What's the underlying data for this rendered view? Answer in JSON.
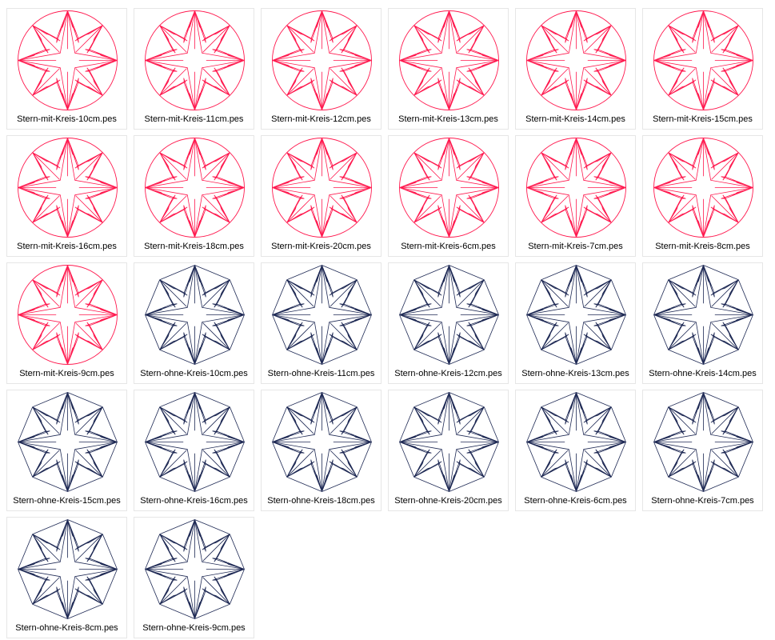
{
  "colors": {
    "mit_kreis": "#ff1a4f",
    "ohne_kreis": "#1f2a55"
  },
  "files": [
    {
      "name": "Stern-mit-Kreis-10cm.pes",
      "variant": "mit_kreis",
      "icon": "embroidery-star-circle-thumbnail"
    },
    {
      "name": "Stern-mit-Kreis-11cm.pes",
      "variant": "mit_kreis",
      "icon": "embroidery-star-circle-thumbnail"
    },
    {
      "name": "Stern-mit-Kreis-12cm.pes",
      "variant": "mit_kreis",
      "icon": "embroidery-star-circle-thumbnail"
    },
    {
      "name": "Stern-mit-Kreis-13cm.pes",
      "variant": "mit_kreis",
      "icon": "embroidery-star-circle-thumbnail"
    },
    {
      "name": "Stern-mit-Kreis-14cm.pes",
      "variant": "mit_kreis",
      "icon": "embroidery-star-circle-thumbnail"
    },
    {
      "name": "Stern-mit-Kreis-15cm.pes",
      "variant": "mit_kreis",
      "icon": "embroidery-star-circle-thumbnail"
    },
    {
      "name": "Stern-mit-Kreis-16cm.pes",
      "variant": "mit_kreis",
      "icon": "embroidery-star-circle-thumbnail"
    },
    {
      "name": "Stern-mit-Kreis-18cm.pes",
      "variant": "mit_kreis",
      "icon": "embroidery-star-circle-thumbnail"
    },
    {
      "name": "Stern-mit-Kreis-20cm.pes",
      "variant": "mit_kreis",
      "icon": "embroidery-star-circle-thumbnail"
    },
    {
      "name": "Stern-mit-Kreis-6cm.pes",
      "variant": "mit_kreis",
      "icon": "embroidery-star-circle-thumbnail"
    },
    {
      "name": "Stern-mit-Kreis-7cm.pes",
      "variant": "mit_kreis",
      "icon": "embroidery-star-circle-thumbnail"
    },
    {
      "name": "Stern-mit-Kreis-8cm.pes",
      "variant": "mit_kreis",
      "icon": "embroidery-star-circle-thumbnail"
    },
    {
      "name": "Stern-mit-Kreis-9cm.pes",
      "variant": "mit_kreis",
      "icon": "embroidery-star-circle-thumbnail"
    },
    {
      "name": "Stern-ohne-Kreis-10cm.pes",
      "variant": "ohne_kreis",
      "icon": "embroidery-star-thumbnail"
    },
    {
      "name": "Stern-ohne-Kreis-11cm.pes",
      "variant": "ohne_kreis",
      "icon": "embroidery-star-thumbnail"
    },
    {
      "name": "Stern-ohne-Kreis-12cm.pes",
      "variant": "ohne_kreis",
      "icon": "embroidery-star-thumbnail"
    },
    {
      "name": "Stern-ohne-Kreis-13cm.pes",
      "variant": "ohne_kreis",
      "icon": "embroidery-star-thumbnail"
    },
    {
      "name": "Stern-ohne-Kreis-14cm.pes",
      "variant": "ohne_kreis",
      "icon": "embroidery-star-thumbnail"
    },
    {
      "name": "Stern-ohne-Kreis-15cm.pes",
      "variant": "ohne_kreis",
      "icon": "embroidery-star-thumbnail"
    },
    {
      "name": "Stern-ohne-Kreis-16cm.pes",
      "variant": "ohne_kreis",
      "icon": "embroidery-star-thumbnail"
    },
    {
      "name": "Stern-ohne-Kreis-18cm.pes",
      "variant": "ohne_kreis",
      "icon": "embroidery-star-thumbnail"
    },
    {
      "name": "Stern-ohne-Kreis-20cm.pes",
      "variant": "ohne_kreis",
      "icon": "embroidery-star-thumbnail"
    },
    {
      "name": "Stern-ohne-Kreis-6cm.pes",
      "variant": "ohne_kreis",
      "icon": "embroidery-star-thumbnail"
    },
    {
      "name": "Stern-ohne-Kreis-7cm.pes",
      "variant": "ohne_kreis",
      "icon": "embroidery-star-thumbnail"
    },
    {
      "name": "Stern-ohne-Kreis-8cm.pes",
      "variant": "ohne_kreis",
      "icon": "embroidery-star-thumbnail"
    },
    {
      "name": "Stern-ohne-Kreis-9cm.pes",
      "variant": "ohne_kreis",
      "icon": "embroidery-star-thumbnail"
    }
  ]
}
